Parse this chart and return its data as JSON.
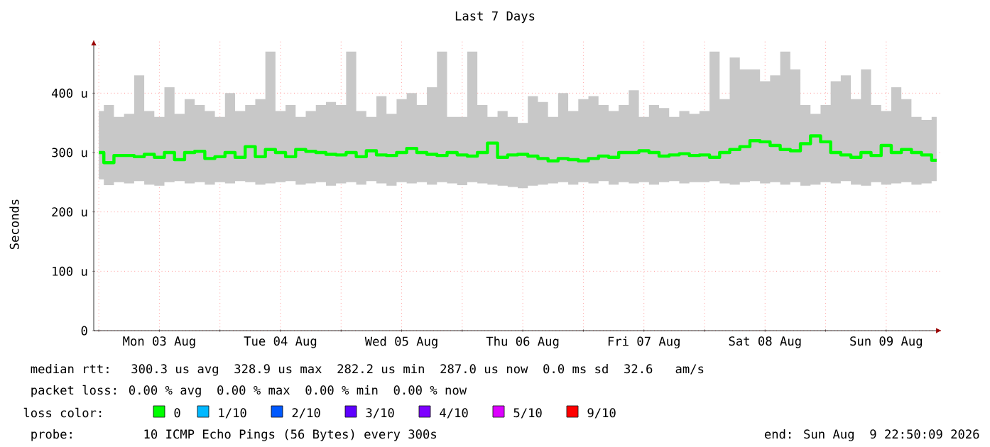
{
  "chart_data": {
    "type": "step",
    "title": "Last 7 Days",
    "ylabel": "Seconds",
    "legend_title": "loss color:",
    "x": [
      "2026-08-03T00:00",
      "2026-08-03T02:00",
      "2026-08-03T04:00",
      "2026-08-03T06:00",
      "2026-08-03T08:00",
      "2026-08-03T10:00",
      "2026-08-03T12:00",
      "2026-08-03T14:00",
      "2026-08-03T16:00",
      "2026-08-03T18:00",
      "2026-08-03T20:00",
      "2026-08-03T22:00",
      "2026-08-04T00:00",
      "2026-08-04T02:00",
      "2026-08-04T04:00",
      "2026-08-04T06:00",
      "2026-08-04T08:00",
      "2026-08-04T10:00",
      "2026-08-04T12:00",
      "2026-08-04T14:00",
      "2026-08-04T16:00",
      "2026-08-04T18:00",
      "2026-08-04T20:00",
      "2026-08-04T22:00",
      "2026-08-05T00:00",
      "2026-08-05T02:00",
      "2026-08-05T04:00",
      "2026-08-05T06:00",
      "2026-08-05T08:00",
      "2026-08-05T10:00",
      "2026-08-05T12:00",
      "2026-08-05T14:00",
      "2026-08-05T16:00",
      "2026-08-05T18:00",
      "2026-08-05T20:00",
      "2026-08-05T22:00",
      "2026-08-06T00:00",
      "2026-08-06T02:00",
      "2026-08-06T04:00",
      "2026-08-06T06:00",
      "2026-08-06T08:00",
      "2026-08-06T10:00",
      "2026-08-06T12:00",
      "2026-08-06T14:00",
      "2026-08-06T16:00",
      "2026-08-06T18:00",
      "2026-08-06T20:00",
      "2026-08-06T22:00",
      "2026-08-07T00:00",
      "2026-08-07T02:00",
      "2026-08-07T04:00",
      "2026-08-07T06:00",
      "2026-08-07T08:00",
      "2026-08-07T10:00",
      "2026-08-07T12:00",
      "2026-08-07T14:00",
      "2026-08-07T16:00",
      "2026-08-07T18:00",
      "2026-08-07T20:00",
      "2026-08-07T22:00",
      "2026-08-08T00:00",
      "2026-08-08T02:00",
      "2026-08-08T04:00",
      "2026-08-08T06:00",
      "2026-08-08T08:00",
      "2026-08-08T10:00",
      "2026-08-08T12:00",
      "2026-08-08T14:00",
      "2026-08-08T16:00",
      "2026-08-08T18:00",
      "2026-08-08T20:00",
      "2026-08-08T22:00",
      "2026-08-09T00:00",
      "2026-08-09T02:00",
      "2026-08-09T04:00",
      "2026-08-09T06:00",
      "2026-08-09T08:00",
      "2026-08-09T10:00",
      "2026-08-09T12:00",
      "2026-08-09T14:00",
      "2026-08-09T16:00",
      "2026-08-09T18:00",
      "2026-08-09T20:00",
      "2026-08-09T22:00"
    ],
    "xlim": [
      "2026-08-02T23:00",
      "2026-08-09T23:00"
    ],
    "xticks": [
      {
        "value": "2026-08-03T00:00",
        "label": null
      },
      {
        "value": "2026-08-03T12:00",
        "label": "Mon 03 Aug"
      },
      {
        "value": "2026-08-04T00:00",
        "label": null
      },
      {
        "value": "2026-08-04T12:00",
        "label": "Tue 04 Aug"
      },
      {
        "value": "2026-08-05T00:00",
        "label": null
      },
      {
        "value": "2026-08-05T12:00",
        "label": "Wed 05 Aug"
      },
      {
        "value": "2026-08-06T00:00",
        "label": null
      },
      {
        "value": "2026-08-06T12:00",
        "label": "Thu 06 Aug"
      },
      {
        "value": "2026-08-07T00:00",
        "label": null
      },
      {
        "value": "2026-08-07T12:00",
        "label": "Fri 07 Aug"
      },
      {
        "value": "2026-08-08T00:00",
        "label": null
      },
      {
        "value": "2026-08-08T12:00",
        "label": "Sat 08 Aug"
      },
      {
        "value": "2026-08-09T00:00",
        "label": null
      },
      {
        "value": "2026-08-09T12:00",
        "label": "Sun 09 Aug"
      }
    ],
    "ylim": [
      0,
      490
    ],
    "yticks": [
      0,
      {
        "value": 100,
        "label": "100 u"
      },
      {
        "value": 200,
        "label": "200 u"
      },
      {
        "value": 300,
        "label": "300 u"
      },
      {
        "value": 400,
        "label": "400 u"
      }
    ],
    "grid": true,
    "legend": "bottom",
    "series": [
      {
        "name": "0",
        "color": "#00ff00",
        "values": [
          300,
          283,
          295,
          295,
          293,
          297,
          292,
          300,
          288,
          300,
          302,
          290,
          293,
          300,
          292,
          310,
          293,
          305,
          300,
          293,
          305,
          302,
          300,
          297,
          296,
          300,
          293,
          303,
          296,
          295,
          300,
          307,
          300,
          297,
          295,
          300,
          296,
          294,
          300,
          316,
          292,
          296,
          297,
          294,
          290,
          286,
          290,
          288,
          286,
          290,
          294,
          292,
          300,
          300,
          303,
          300,
          294,
          296,
          298,
          295,
          296,
          292,
          300,
          305,
          310,
          320,
          318,
          312,
          305,
          303,
          315,
          328,
          318,
          300,
          296,
          292,
          300,
          295,
          312,
          300,
          305,
          300,
          296,
          287
        ],
        "lower": [
          255,
          245,
          250,
          248,
          252,
          246,
          244,
          250,
          252,
          248,
          250,
          246,
          250,
          248,
          252,
          250,
          246,
          248,
          250,
          252,
          246,
          248,
          250,
          244,
          248,
          250,
          246,
          252,
          248,
          244,
          250,
          248,
          250,
          246,
          250,
          248,
          245,
          250,
          248,
          246,
          244,
          242,
          240,
          244,
          246,
          248,
          250,
          246,
          250,
          248,
          252,
          246,
          250,
          248,
          250,
          246,
          250,
          252,
          248,
          250,
          250,
          252,
          248,
          246,
          250,
          252,
          248,
          250,
          246,
          250,
          244,
          246,
          250,
          248,
          252,
          246,
          244,
          250,
          246,
          248,
          250,
          246,
          248,
          252
        ],
        "upper": [
          370,
          380,
          360,
          365,
          430,
          370,
          360,
          410,
          365,
          390,
          380,
          370,
          360,
          400,
          370,
          380,
          390,
          470,
          370,
          380,
          360,
          370,
          380,
          385,
          380,
          470,
          370,
          360,
          395,
          365,
          390,
          400,
          380,
          410,
          470,
          360,
          360,
          470,
          380,
          360,
          370,
          360,
          350,
          395,
          385,
          360,
          400,
          370,
          390,
          395,
          380,
          370,
          380,
          405,
          360,
          380,
          375,
          360,
          370,
          365,
          370,
          470,
          390,
          460,
          440,
          440,
          420,
          430,
          470,
          440,
          380,
          365,
          380,
          420,
          430,
          390,
          440,
          380,
          370,
          410,
          390,
          360,
          355,
          360
        ]
      },
      {
        "name": "1/10",
        "color": "#00b8ff",
        "values": [
          null,
          null,
          null,
          null,
          null,
          null,
          null,
          null,
          null,
          null,
          null,
          null,
          null,
          null,
          null,
          null,
          null,
          null,
          null,
          null,
          null,
          null,
          null,
          null,
          null,
          null,
          null,
          null,
          null,
          null,
          null,
          null,
          null,
          null,
          null,
          null,
          null,
          null,
          null,
          null,
          null,
          null,
          null,
          null,
          null,
          null,
          null,
          null,
          null,
          null,
          null,
          null,
          null,
          null,
          null,
          null,
          null,
          null,
          null,
          null,
          null,
          null,
          null,
          null,
          null,
          null,
          null,
          null,
          null,
          null,
          null,
          null,
          null,
          null,
          null,
          null,
          null,
          null,
          null,
          null,
          null,
          null,
          null,
          null
        ]
      },
      {
        "name": "2/10",
        "color": "#0059ff",
        "values": [
          null,
          null,
          null,
          null,
          null,
          null,
          null,
          null,
          null,
          null,
          null,
          null,
          null,
          null,
          null,
          null,
          null,
          null,
          null,
          null,
          null,
          null,
          null,
          null,
          null,
          null,
          null,
          null,
          null,
          null,
          null,
          null,
          null,
          null,
          null,
          null,
          null,
          null,
          null,
          null,
          null,
          null,
          null,
          null,
          null,
          null,
          null,
          null,
          null,
          null,
          null,
          null,
          null,
          null,
          null,
          null,
          null,
          null,
          null,
          null,
          null,
          null,
          null,
          null,
          null,
          null,
          null,
          null,
          null,
          null,
          null,
          null,
          null,
          null,
          null,
          null,
          null,
          null,
          null,
          null,
          null,
          null,
          null,
          null
        ]
      },
      {
        "name": "3/10",
        "color": "#5e00ff",
        "values": [
          null,
          null,
          null,
          null,
          null,
          null,
          null,
          null,
          null,
          null,
          null,
          null,
          null,
          null,
          null,
          null,
          null,
          null,
          null,
          null,
          null,
          null,
          null,
          null,
          null,
          null,
          null,
          null,
          null,
          null,
          null,
          null,
          null,
          null,
          null,
          null,
          null,
          null,
          null,
          null,
          null,
          null,
          null,
          null,
          null,
          null,
          null,
          null,
          null,
          null,
          null,
          null,
          null,
          null,
          null,
          null,
          null,
          null,
          null,
          null,
          null,
          null,
          null,
          null,
          null,
          null,
          null,
          null,
          null,
          null,
          null,
          null,
          null,
          null,
          null,
          null,
          null,
          null,
          null,
          null,
          null,
          null,
          null,
          null
        ]
      },
      {
        "name": "4/10",
        "color": "#7e00ff",
        "values": [
          null,
          null,
          null,
          null,
          null,
          null,
          null,
          null,
          null,
          null,
          null,
          null,
          null,
          null,
          null,
          null,
          null,
          null,
          null,
          null,
          null,
          null,
          null,
          null,
          null,
          null,
          null,
          null,
          null,
          null,
          null,
          null,
          null,
          null,
          null,
          null,
          null,
          null,
          null,
          null,
          null,
          null,
          null,
          null,
          null,
          null,
          null,
          null,
          null,
          null,
          null,
          null,
          null,
          null,
          null,
          null,
          null,
          null,
          null,
          null,
          null,
          null,
          null,
          null,
          null,
          null,
          null,
          null,
          null,
          null,
          null,
          null,
          null,
          null,
          null,
          null,
          null,
          null,
          null,
          null,
          null,
          null,
          null,
          null
        ]
      },
      {
        "name": "5/10",
        "color": "#dd00ff",
        "values": [
          null,
          null,
          null,
          null,
          null,
          null,
          null,
          null,
          null,
          null,
          null,
          null,
          null,
          null,
          null,
          null,
          null,
          null,
          null,
          null,
          null,
          null,
          null,
          null,
          null,
          null,
          null,
          null,
          null,
          null,
          null,
          null,
          null,
          null,
          null,
          null,
          null,
          null,
          null,
          null,
          null,
          null,
          null,
          null,
          null,
          null,
          null,
          null,
          null,
          null,
          null,
          null,
          null,
          null,
          null,
          null,
          null,
          null,
          null,
          null,
          null,
          null,
          null,
          null,
          null,
          null,
          null,
          null,
          null,
          null,
          null,
          null,
          null,
          null,
          null,
          null,
          null,
          null,
          null,
          null,
          null,
          null,
          null,
          null
        ]
      },
      {
        "name": "9/10",
        "color": "#ff0000",
        "values": [
          null,
          null,
          null,
          null,
          null,
          null,
          null,
          null,
          null,
          null,
          null,
          null,
          null,
          null,
          null,
          null,
          null,
          null,
          null,
          null,
          null,
          null,
          null,
          null,
          null,
          null,
          null,
          null,
          null,
          null,
          null,
          null,
          null,
          null,
          null,
          null,
          null,
          null,
          null,
          null,
          null,
          null,
          null,
          null,
          null,
          null,
          null,
          null,
          null,
          null,
          null,
          null,
          null,
          null,
          null,
          null,
          null,
          null,
          null,
          null,
          null,
          null,
          null,
          null,
          null,
          null,
          null,
          null,
          null,
          null,
          null,
          null,
          null,
          null,
          null,
          null,
          null,
          null,
          null,
          null,
          null,
          null,
          null,
          null
        ]
      }
    ],
    "annotations": [
      "median rtt:  300.3 us avg  328.9 us max  282.2 us min  287.0 us now  0.0 ms sd  32.6   am/s",
      "packet loss: 0.00 % avg  0.00 % max  0.00 % min  0.00 % now",
      "probe:       10 ICMP Echo Pings (56 Bytes) every 300s",
      "end: Sun Aug  9 22:50:09 2026"
    ]
  }
}
